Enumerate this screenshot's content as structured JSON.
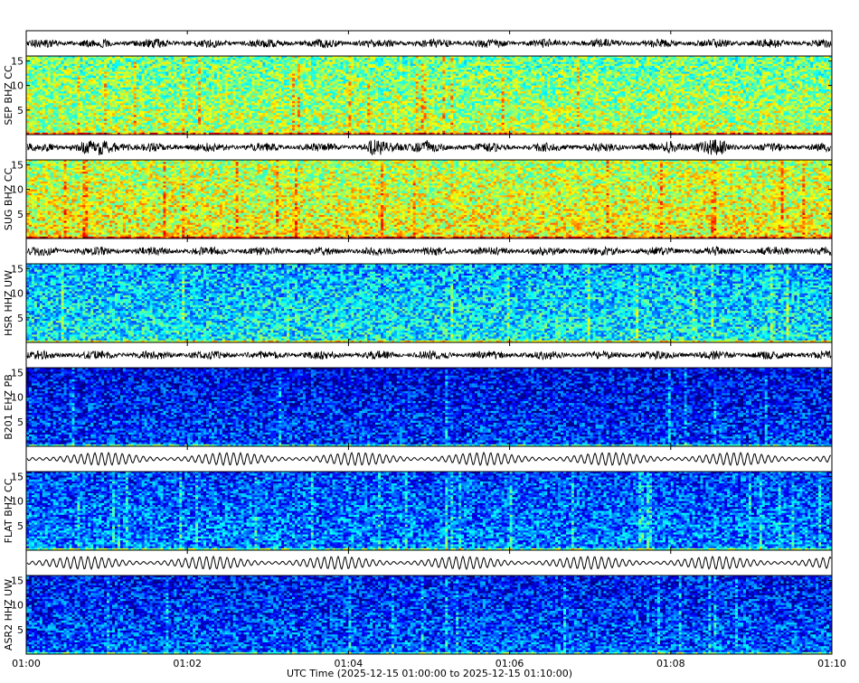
{
  "chart_data": {
    "type": "heatmap",
    "subtype": "seismogram waveforms with spectrograms",
    "xlabel": "UTC Time (2025-12-15 01:00:00 to 2025-12-15 01:10:00)",
    "x_range_minutes": [
      0,
      10
    ],
    "x_ticks": [
      "01:00",
      "01:02",
      "01:04",
      "01:06",
      "01:08",
      "01:10"
    ],
    "x_tick_minutes": [
      0,
      2,
      4,
      6,
      8,
      10
    ],
    "y_range": [
      0,
      16
    ],
    "y_ticks": [
      5,
      10,
      15
    ],
    "colormap": "jet",
    "stations": [
      {
        "label": "SEP BHZ CC",
        "spectrogram_level": 0.48,
        "waveform": "high-frequency noise"
      },
      {
        "label": "SUG BHZ CC",
        "spectrogram_level": 0.55,
        "waveform": "high-frequency noise with bursts"
      },
      {
        "label": "HSR HHZ UW",
        "spectrogram_level": 0.3,
        "waveform": "dense oscillation"
      },
      {
        "label": "B201 EHZ PB",
        "spectrogram_level": 0.1,
        "waveform": "high-frequency noise"
      },
      {
        "label": "FLAT BHZ CC",
        "spectrogram_level": 0.18,
        "waveform": "low-frequency oscillation"
      },
      {
        "label": "ASR2 HHZ UW",
        "spectrogram_level": 0.13,
        "waveform": "low-frequency oscillation"
      }
    ]
  }
}
